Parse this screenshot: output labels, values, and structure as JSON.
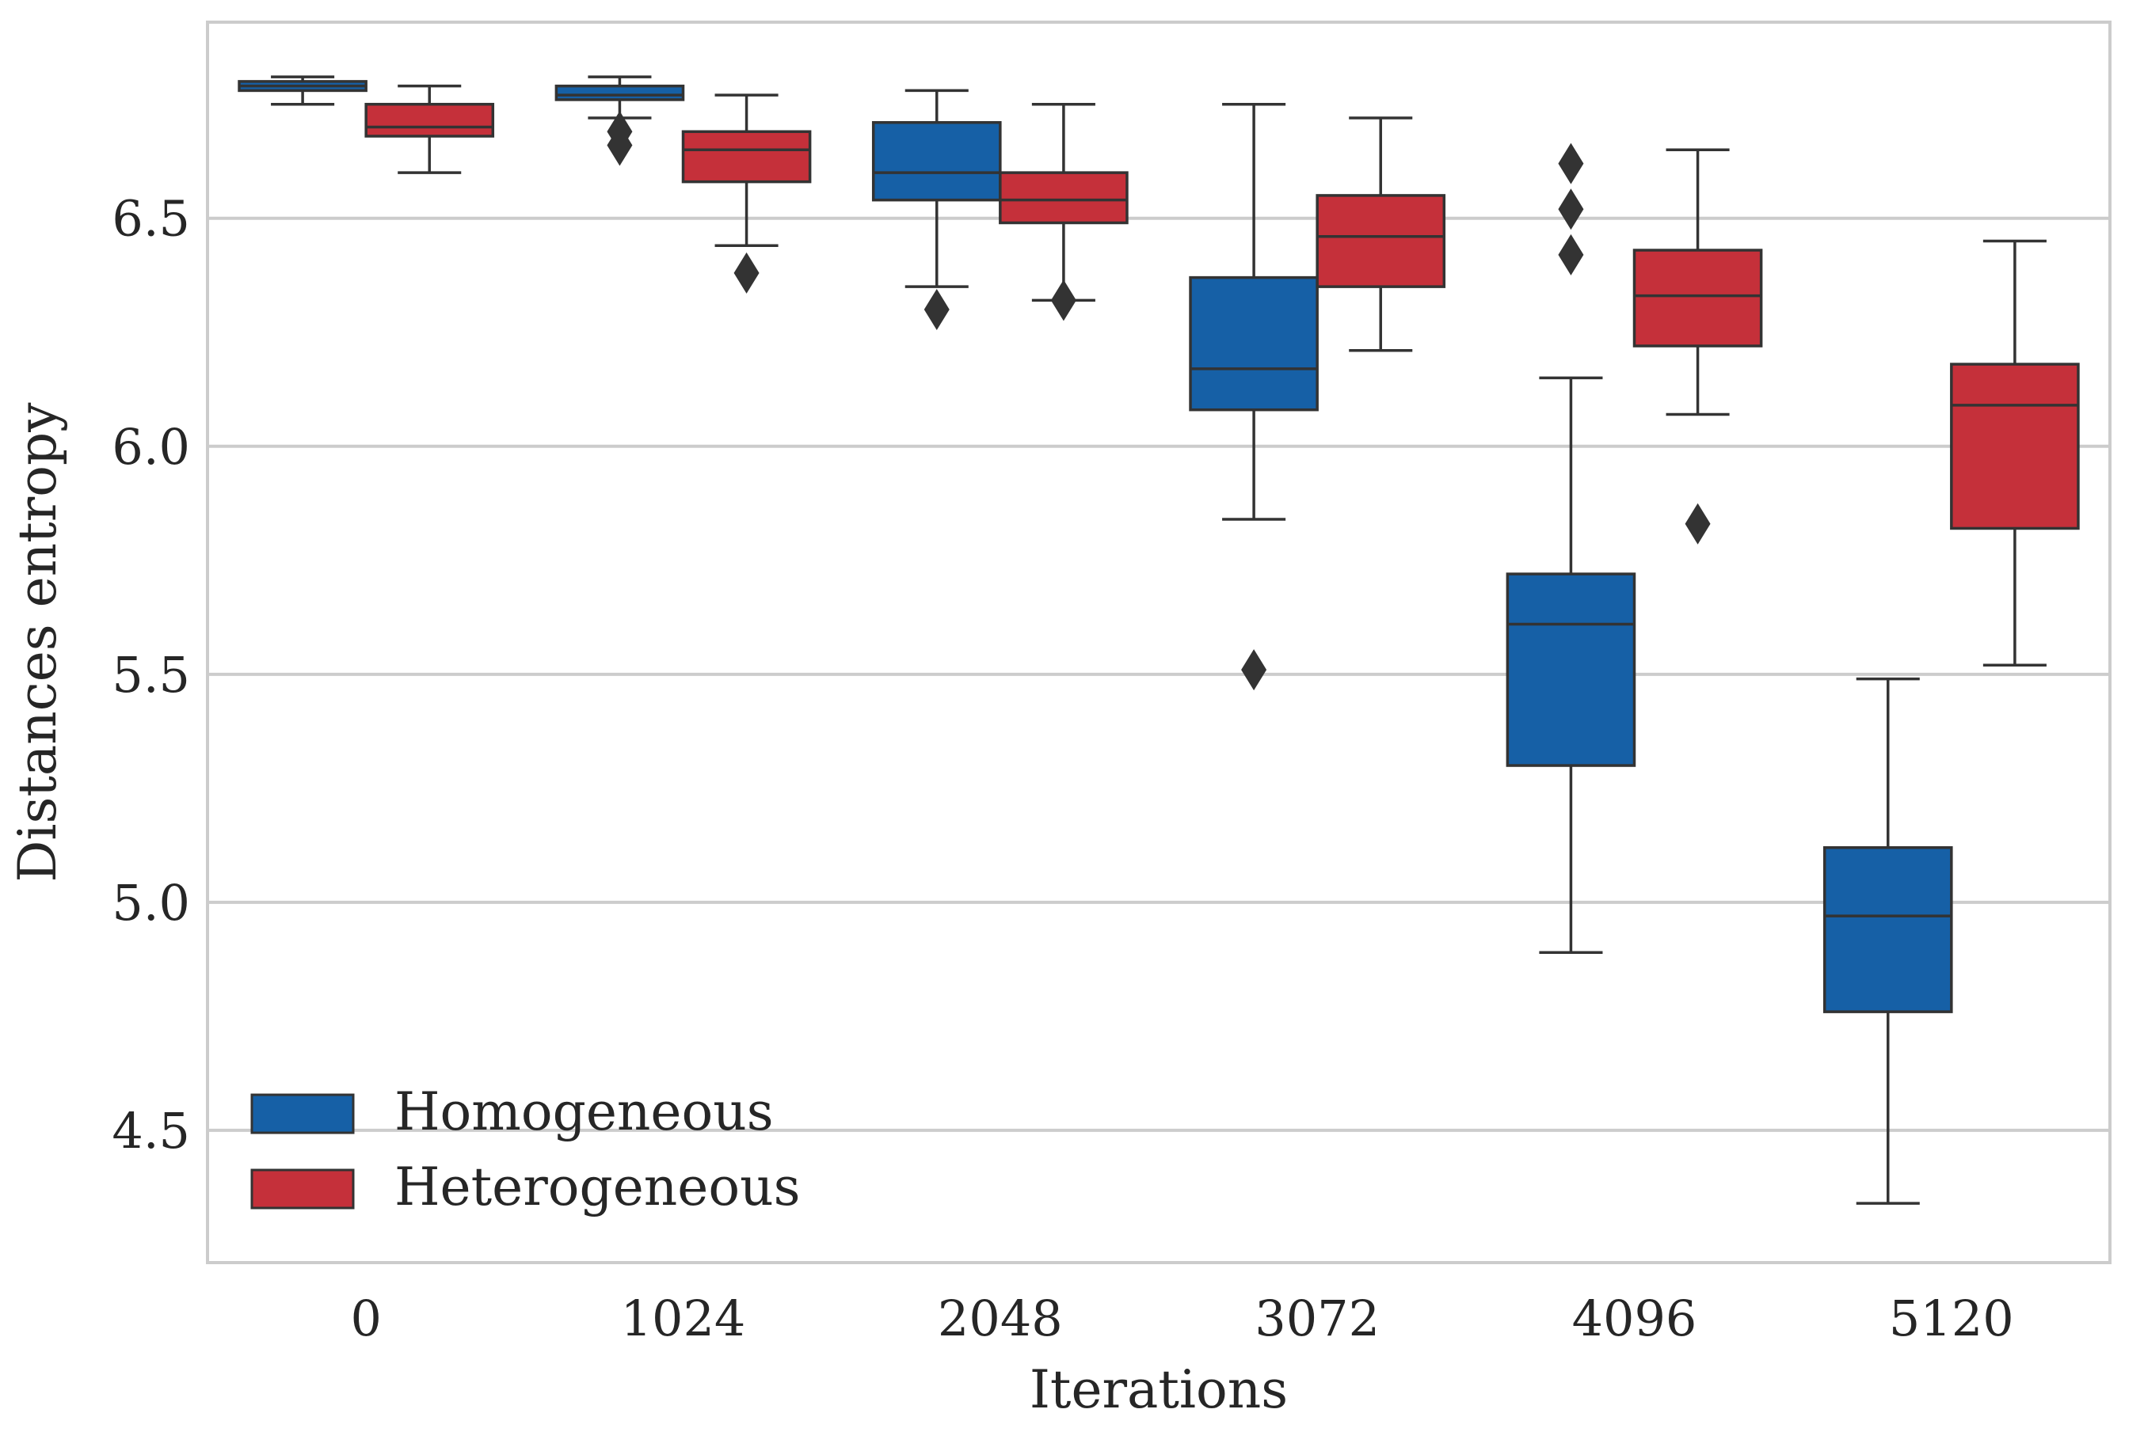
{
  "chart_data": {
    "type": "boxplot",
    "title": "",
    "xlabel": "Iterations",
    "ylabel": "Distances entropy",
    "ylim": [
      4.21,
      6.93
    ],
    "yticks": [
      "4.5",
      "5.0",
      "5.5",
      "6.0",
      "6.5"
    ],
    "grid": "horizontal",
    "legend_position": "bottom-left",
    "categories": [
      "0",
      "1024",
      "2048",
      "3072",
      "4096",
      "5120"
    ],
    "series": [
      {
        "name": "Homogeneous",
        "color": "#1660A6",
        "boxes": [
          {
            "whisker_low": 6.75,
            "q1": 6.78,
            "median": 6.79,
            "q3": 6.8,
            "whisker_high": 6.81,
            "outliers": []
          },
          {
            "whisker_low": 6.72,
            "q1": 6.76,
            "median": 6.77,
            "q3": 6.79,
            "whisker_high": 6.81,
            "outliers": [
              6.69,
              6.66
            ]
          },
          {
            "whisker_low": 6.35,
            "q1": 6.54,
            "median": 6.6,
            "q3": 6.71,
            "whisker_high": 6.78,
            "outliers": [
              6.3
            ]
          },
          {
            "whisker_low": 5.84,
            "q1": 6.08,
            "median": 6.17,
            "q3": 6.37,
            "whisker_high": 6.75,
            "outliers": [
              5.51
            ]
          },
          {
            "whisker_low": 4.89,
            "q1": 5.3,
            "median": 5.61,
            "q3": 5.72,
            "whisker_high": 6.15,
            "outliers": [
              6.62,
              6.52,
              6.42
            ]
          },
          {
            "whisker_low": 4.34,
            "q1": 4.76,
            "median": 4.97,
            "q3": 5.12,
            "whisker_high": 5.49,
            "outliers": []
          }
        ]
      },
      {
        "name": "Heterogeneous",
        "color": "#C5303A",
        "boxes": [
          {
            "whisker_low": 6.6,
            "q1": 6.68,
            "median": 6.7,
            "q3": 6.75,
            "whisker_high": 6.79,
            "outliers": []
          },
          {
            "whisker_low": 6.44,
            "q1": 6.58,
            "median": 6.65,
            "q3": 6.69,
            "whisker_high": 6.77,
            "outliers": [
              6.38
            ]
          },
          {
            "whisker_low": 6.32,
            "q1": 6.49,
            "median": 6.54,
            "q3": 6.6,
            "whisker_high": 6.75,
            "outliers": [
              6.32
            ]
          },
          {
            "whisker_low": 6.21,
            "q1": 6.35,
            "median": 6.46,
            "q3": 6.55,
            "whisker_high": 6.72,
            "outliers": []
          },
          {
            "whisker_low": 6.07,
            "q1": 6.22,
            "median": 6.33,
            "q3": 6.43,
            "whisker_high": 6.65,
            "outliers": [
              5.83
            ]
          },
          {
            "whisker_low": 5.52,
            "q1": 5.82,
            "median": 6.09,
            "q3": 6.18,
            "whisker_high": 6.45,
            "outliers": []
          }
        ]
      }
    ]
  }
}
